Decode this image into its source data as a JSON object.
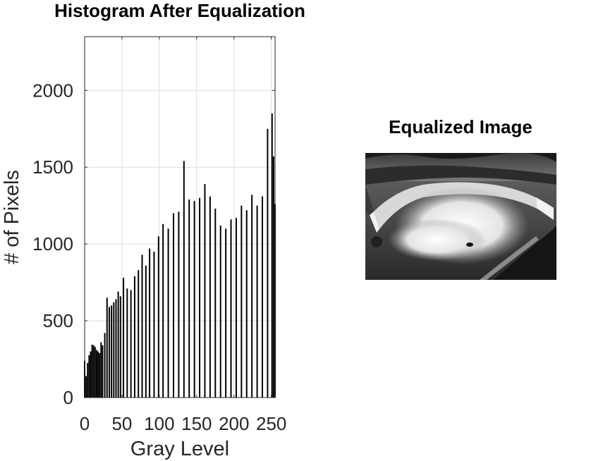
{
  "chart_data": {
    "type": "bar",
    "title": "Histogram After Equalization",
    "xlabel": "Gray Level",
    "ylabel": "# of Pixels",
    "xlim": [
      0,
      255
    ],
    "ylim": [
      0,
      2350
    ],
    "xticks": [
      0,
      50,
      100,
      150,
      200,
      250
    ],
    "yticks": [
      0,
      500,
      1000,
      1500,
      2000
    ],
    "grid": true,
    "x": [
      0,
      2,
      4,
      6,
      8,
      10,
      12,
      14,
      16,
      18,
      20,
      22,
      24,
      27,
      30,
      33,
      36,
      39,
      42,
      45,
      48,
      52,
      57,
      62,
      67,
      72,
      77,
      82,
      87,
      93,
      99,
      105,
      112,
      119,
      126,
      133,
      140,
      147,
      154,
      161,
      168,
      175,
      182,
      189,
      196,
      203,
      210,
      217,
      224,
      231,
      238,
      245,
      251,
      253,
      255
    ],
    "values": [
      240,
      140,
      225,
      275,
      300,
      345,
      340,
      330,
      310,
      300,
      290,
      360,
      340,
      420,
      650,
      590,
      600,
      620,
      640,
      690,
      660,
      780,
      710,
      700,
      790,
      830,
      930,
      860,
      970,
      950,
      1050,
      1130,
      1100,
      1200,
      1210,
      1540,
      1290,
      1280,
      1300,
      1390,
      1310,
      1230,
      1120,
      1100,
      1160,
      1170,
      1250,
      1220,
      1320,
      1250,
      1310,
      1750,
      1850,
      1570,
      1260
    ]
  },
  "image_panel": {
    "title": "Equalized Image",
    "picture": "grayscale-waterfall-photo"
  }
}
